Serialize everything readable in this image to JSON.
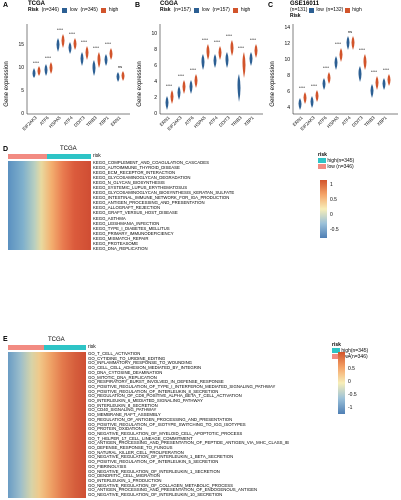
{
  "colors": {
    "low": "#2c5f93",
    "high": "#d2542b",
    "risk_high": "#2ec4c6",
    "risk_low": "#f28b82"
  },
  "panelA": {
    "label": "A",
    "title": "TCGA",
    "legend_title": "Risk",
    "legend_low": "(n=346)",
    "legend_high": "(n=345)",
    "legend_low_name": "low",
    "legend_high_name": "high",
    "ylabel": "Gene expression",
    "yticks": [
      "0",
      "5",
      "10",
      "15"
    ],
    "genes": [
      "EIF2AK3",
      "ATF6",
      "HSPA5",
      "ATF4",
      "DDIT3",
      "TRIB3",
      "XBP1",
      "ERN1"
    ],
    "sig": [
      "****",
      "****",
      "****",
      "****",
      "****",
      "****",
      "****",
      "ns"
    ]
  },
  "panelB": {
    "label": "B",
    "title": "CGGA",
    "legend_title": "Risk",
    "legend_low": "(n=157)",
    "legend_high": "(n=157)",
    "legend_low_name": "low",
    "legend_high_name": "high",
    "ylabel": "Gene expression",
    "yticks": [
      "0",
      "2",
      "4",
      "6",
      "8",
      "10"
    ],
    "genes": [
      "ERN1",
      "EIF2AK3",
      "ATF6",
      "HSPA5",
      "ATF4",
      "DDIT3",
      "TRIB3",
      "XBP1"
    ],
    "sig": [
      "****",
      "****",
      "****",
      "****",
      "****",
      "****",
      "****",
      "****"
    ]
  },
  "panelC": {
    "label": "C",
    "title": "GSE16011",
    "legend_title": "Risk",
    "legend_low": "(n=131)",
    "legend_high": "(n=132)",
    "legend_low_name": "low",
    "legend_high_name": "high",
    "ylabel": "Gene expression",
    "yticks": [
      "4",
      "6",
      "8",
      "10",
      "12",
      "14"
    ],
    "genes": [
      "ERN1",
      "EIF2AK3",
      "ATF6",
      "HSPA5",
      "ATF4",
      "DDIT3",
      "TRIB3",
      "XBP1"
    ],
    "sig": [
      "****",
      "****",
      "****",
      "****",
      "ns",
      "****",
      "****",
      "****"
    ]
  },
  "panelD": {
    "label": "D",
    "title": "TCGA",
    "risk_label": "risk",
    "legend_title": "risk",
    "legend_high": "high(n=345)",
    "legend_low": "low (n=346)",
    "scale": [
      "1",
      "0.5",
      "0",
      "-0.5"
    ],
    "rows": [
      "KEGG_COMPLEMENT_AND_COAGULATION_CASCADES",
      "KEGG_AUTOIMMUNE_THYROID_DISEASE",
      "KEGG_ECM_RECEPTOR_INTERACTION",
      "KEGG_GLYCOSAMINOGLYCAN_DEGRADATION",
      "KEGG_N_GLYCAN_BIOSYNTHESIS",
      "KEGG_SYSTEMIC_LUPUS_ERYTHEMATOSUS",
      "KEGG_GLYCOSAMINOGLYCAN_BIOSYNTHESIS_KERATAN_SULFATE",
      "KEGG_INTESTINAL_IMMUNE_NETWORK_FOR_IGA_PRODUCTION",
      "KEGG_ANTIGEN_PROCESSING_AND_PRESENTATION",
      "KEGG_ALLOGRAFT_REJECTION",
      "KEGG_GRAFT_VERSUS_HOST_DISEASE",
      "KEGG_ASTHMA",
      "KEGG_LEISHMANIA_INFECTION",
      "KEGG_TYPE_I_DIABETES_MELLITUS",
      "KEGG_PRIMARY_IMMUNODEFICIENCY",
      "KEGG_MISMATCH_REPAIR",
      "KEGG_PROTEASOME",
      "KEGG_DNA_REPLICATION"
    ]
  },
  "panelE": {
    "label": "E",
    "title": "TCGA",
    "risk_label": "risk",
    "legend_title": "risk",
    "legend_high": "high(n=345)",
    "legend_low": "low (n=346)",
    "scale": [
      "1",
      "0.5",
      "0",
      "-0.5",
      "-1"
    ],
    "rows": [
      "GO_T_CELL_ACTIVATION",
      "GO_CYTIDINE_TO_URIDINE_EDITING",
      "GO_INFLAMMATORY_RESPONSE_TO_WOUNDING",
      "GO_CELL_CELL_ADHESION_MEDIATED_BY_INTEGRIN",
      "GO_DNA_CYTOSINE_DEAMINATION",
      "GO_MITOTIC_DNA_REPLICATION",
      "GO_RESPIRATORY_BURST_INVOLVED_IN_DEFENSE_RESPONSE",
      "GO_POSITIVE_REGULATION_OF_TYPE_I_INTERFERON_MEDIATED_SIGNALING_PATHWAY",
      "GO_POSITIVE_REGULATION_OF_INTERLEUKIN_8_SECRETION",
      "GO_REGULATION_OF_CD8_POSITIVE_ALPHA_BETA_T_CELL_ACTIVATION",
      "GO_INTERLEUKIN_6_MEDIATED_SIGNALING_PATHWAY",
      "GO_INTERLEUKIN_8_SECRETION",
      "GO_CD40_SIGNALING_PATHWAY",
      "GO_MEMBRANE_RAFT_ASSEMBLY",
      "GO_REGULATION_OF_ANTIGEN_PROCESSING_AND_PRESENTATION",
      "GO_POSITIVE_REGULATION_OF_ISOTYPE_SWITCHING_TO_IGG_ISOTYPES",
      "GO_PROTEIN_OXIDATION",
      "GO_NEGATIVE_REGULATION_OF_MYELOID_CELL_APOPTOTIC_PROCESS",
      "GO_T_HELPER_17_CELL_LINEAGE_COMMITMENT",
      "GO_ANTIGEN_PROCESSING_AND_PRESENTATION_OF_PEPTIDE_ANTIGEN_VIA_MHC_CLASS_IB",
      "GO_DEFENSE_RESPONSE_TO_FUNGUS",
      "GO_NATURAL_KILLER_CELL_PROLIFERATION",
      "GO_NEGATIVE_REGULATION_OF_INTERLEUKIN_1_BETA_SECRETION",
      "GO_POSITIVE_REGULATION_OF_INTERLEUKIN_5_SECRETION",
      "GO_FIBRINOLYSIS",
      "GO_NEGATIVE_REGULATION_OF_INTERLEUKIN_1_SECRETION",
      "GO_DENDRITIC_CELL_MIGRATION",
      "GO_INTERLEUKIN_1_PRODUCTION",
      "GO_NEGATIVE_REGULATION_OF_COLLAGEN_METABOLIC_PROCESS",
      "GO_ANTIGEN_PROCESSING_AND_PRESENTATION_OF_ENDOGENOUS_ANTIGEN",
      "GO_NEGATIVE_REGULATION_OF_INTERLEUKIN_10_SECRETION"
    ]
  }
}
